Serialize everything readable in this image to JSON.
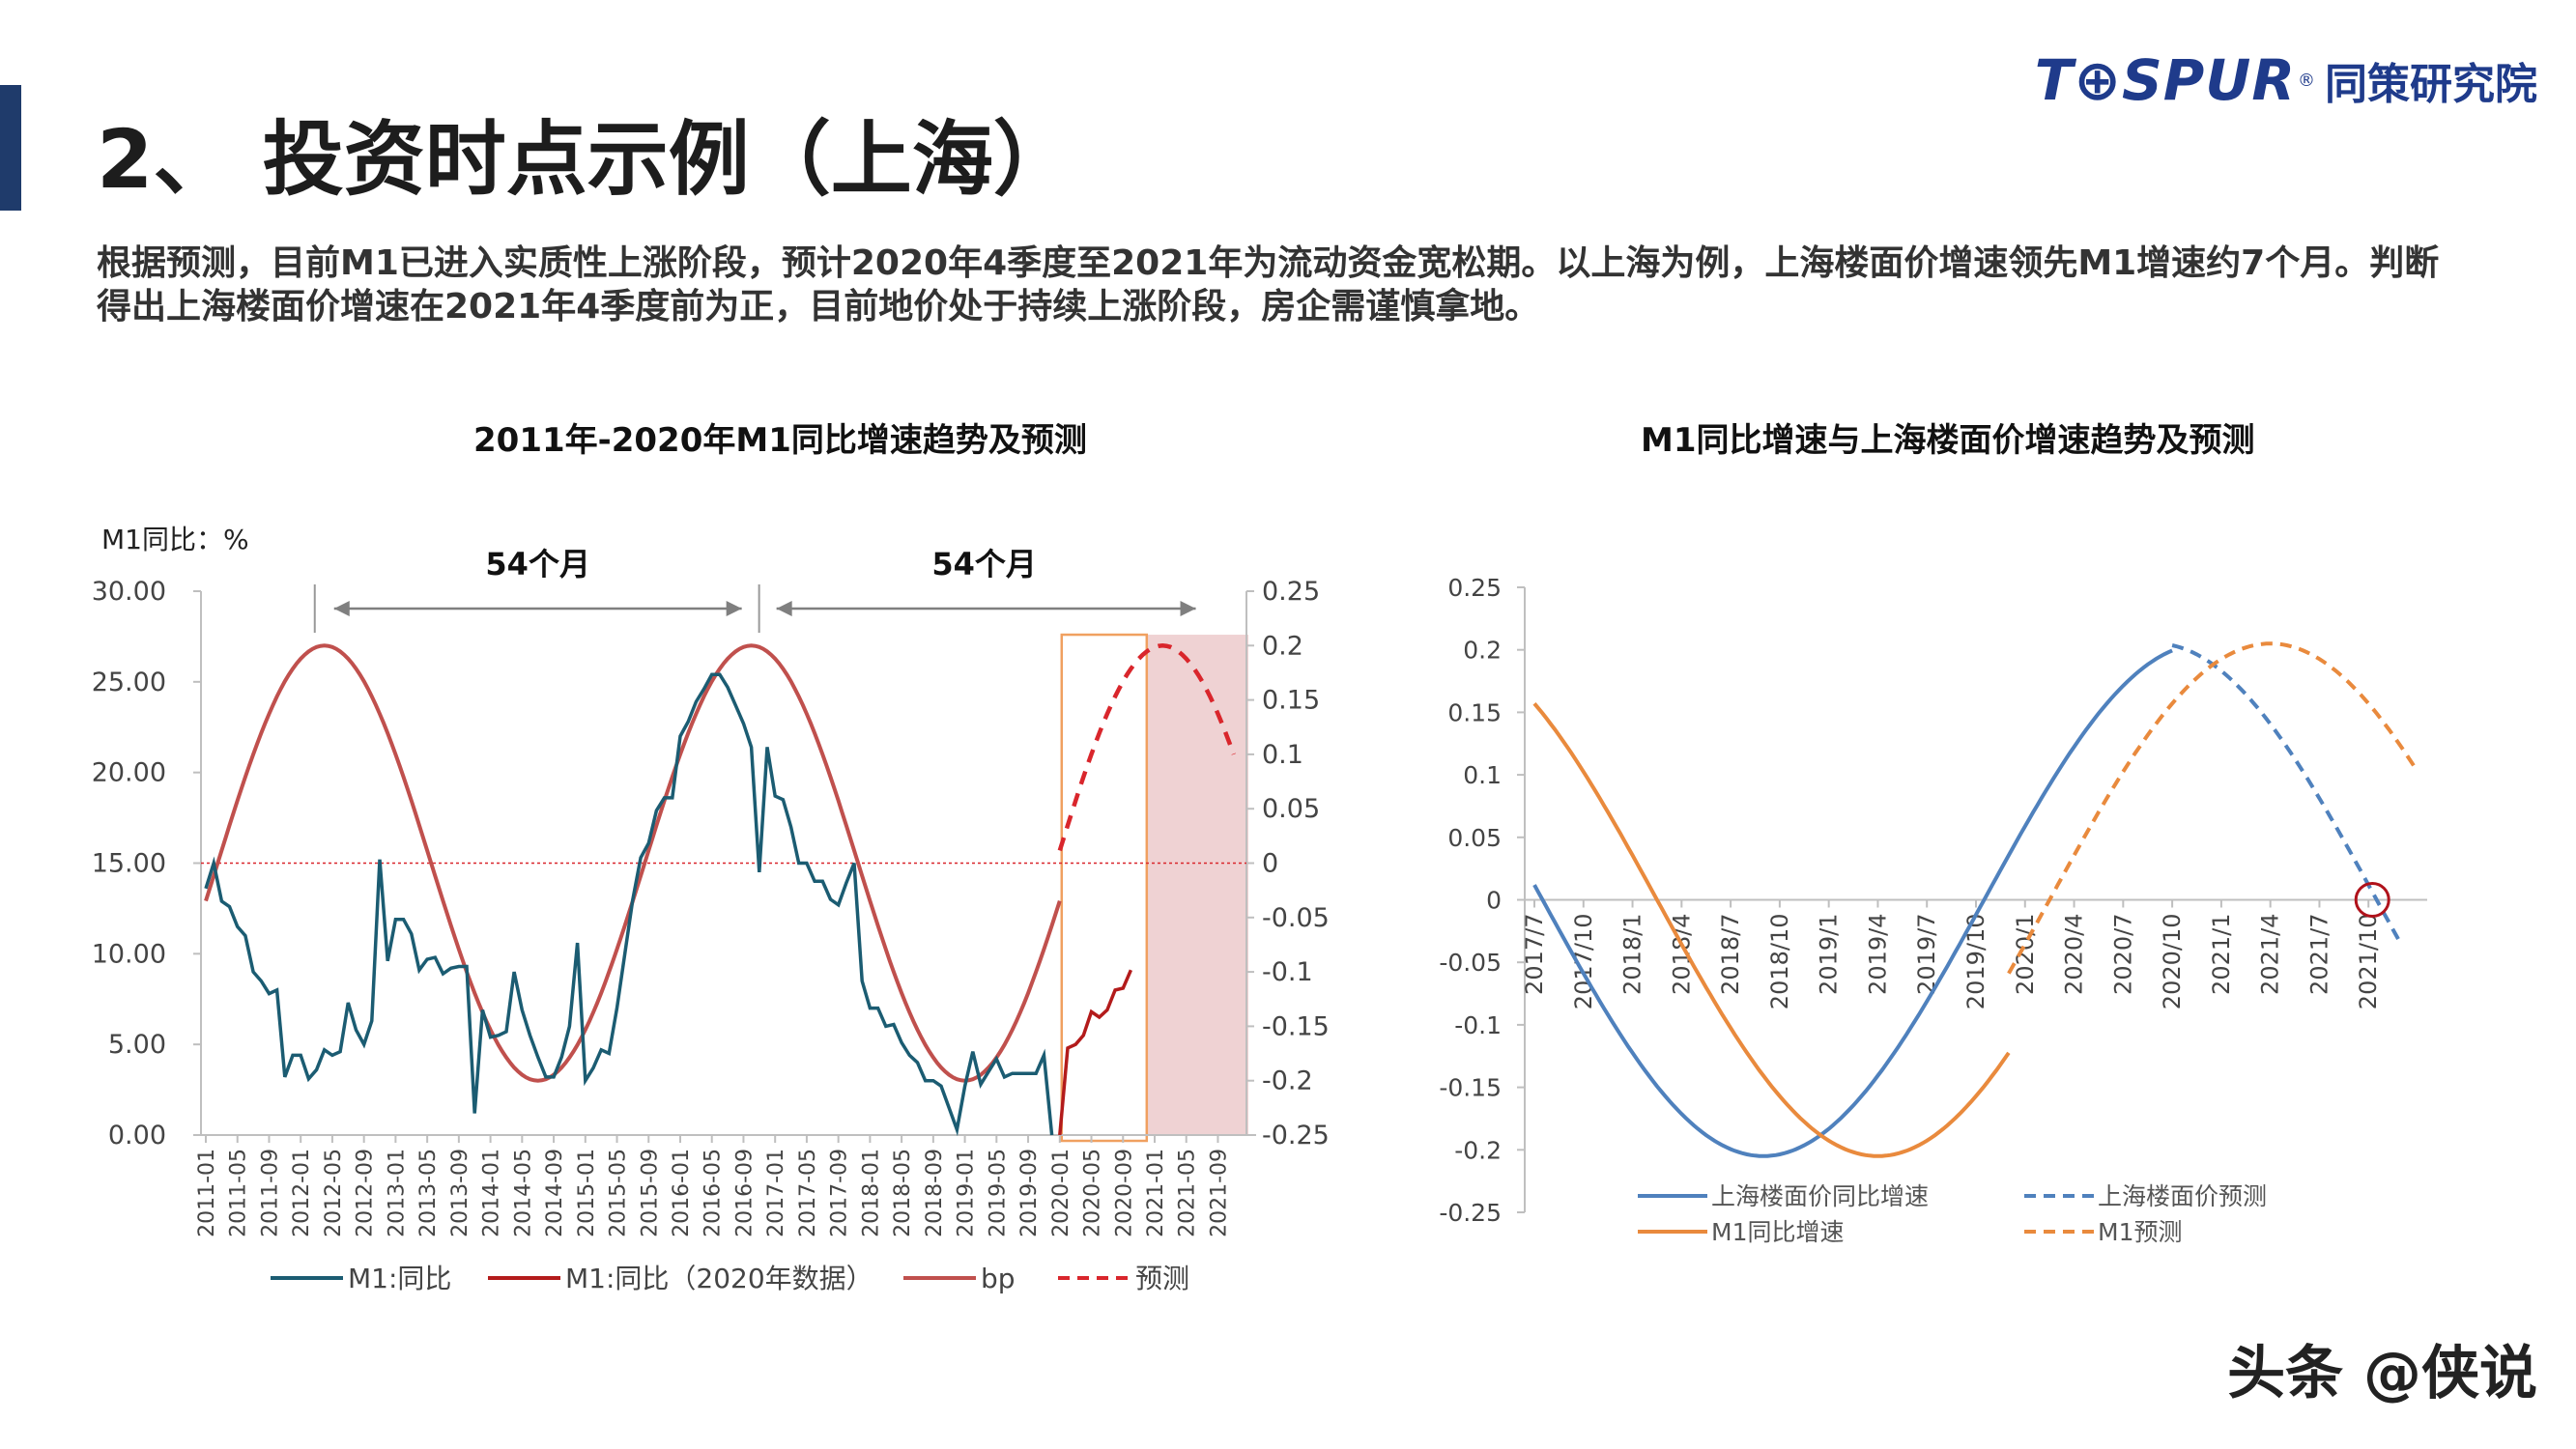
{
  "header": {
    "title": "2、 投资时点示例（上海）",
    "logo_brand": "T⊕SPUR",
    "logo_registered": "®",
    "logo_cn": "同策研究院"
  },
  "description": "根据预测，目前M1已进入实质性上涨阶段，预计2020年4季度至2021年为流动资金宽松期。以上海为例，上海楼面价增速领先M1增速约7个月。判断得出上海楼面价增速在2021年4季度前为正，目前地价处于持续上涨阶段，房企需谨慎拿地。",
  "footer": {
    "watermark_handle": "头条 @侠说"
  },
  "colors": {
    "accent": "#1f3b6b",
    "m1": "#1b5c72",
    "m1_2020": "#b31b1b",
    "bp": "#c0504d",
    "forecast": "#d9262c",
    "shade": "#efd2d3",
    "box": "#f0a060",
    "blue": "#4f81bd",
    "orange": "#e98a3d"
  },
  "chart_data": [
    {
      "type": "line",
      "title": "2011年-2020年M1同比增速趋势及预测",
      "ylabel": "M1同比：%",
      "ylim": [
        0,
        30
      ],
      "y2lim": [
        -0.25,
        0.25
      ],
      "y_ticks": [
        "0.00",
        "5.00",
        "10.00",
        "15.00",
        "20.00",
        "25.00",
        "30.00"
      ],
      "y2_ticks": [
        "-0.25",
        "-0.2",
        "-0.15",
        "-0.1",
        "-0.05",
        "0",
        "0.05",
        "0.1",
        "0.15",
        "0.2",
        "0.25"
      ],
      "x_ticks": [
        "2011-01",
        "2011-05",
        "2011-09",
        "2012-01",
        "2012-05",
        "2012-09",
        "2013-01",
        "2013-05",
        "2013-09",
        "2014-01",
        "2014-05",
        "2014-09",
        "2015-01",
        "2015-05",
        "2015-09",
        "2016-01",
        "2016-05",
        "2016-09",
        "2017-01",
        "2017-05",
        "2017-09",
        "2018-01",
        "2018-05",
        "2018-09",
        "2019-01",
        "2019-05",
        "2019-09",
        "2020-01",
        "2020-05",
        "2020-09",
        "2021-01",
        "2021-05",
        "2021-09"
      ],
      "annotations": [
        "54个月",
        "54个月"
      ],
      "legend": [
        "M1:同比",
        "M1:同比（2020年数据）",
        "bp",
        "预测"
      ],
      "legend_position": "bottom",
      "series": [
        {
          "name": "M1:同比",
          "axis": "left",
          "x_start": "2011-01",
          "values": [
            13.6,
            15.0,
            12.9,
            12.6,
            11.5,
            11.0,
            9.0,
            8.5,
            7.8,
            8.0,
            3.2,
            4.4,
            4.4,
            3.1,
            3.6,
            4.7,
            4.4,
            4.6,
            7.3,
            5.8,
            5.0,
            6.3,
            15.2,
            9.6,
            11.9,
            11.9,
            11.1,
            9.1,
            9.7,
            9.8,
            8.9,
            9.2,
            9.3,
            9.3,
            1.2,
            6.9,
            5.4,
            5.5,
            5.7,
            9.0,
            6.9,
            5.5,
            4.3,
            3.2,
            3.2,
            4.3,
            6.0,
            10.6,
            3.0,
            3.7,
            4.7,
            4.5,
            7.0,
            10.0,
            13.0,
            15.3,
            16.1,
            17.9,
            18.6,
            18.6,
            22.0,
            22.8,
            23.9,
            24.6,
            25.4,
            25.4,
            24.7,
            23.7,
            22.7,
            21.4,
            14.5,
            21.4,
            18.7,
            18.5,
            17.0,
            15.0,
            15.0,
            14.0,
            14.0,
            13.0,
            12.7,
            13.9,
            15.0,
            8.5,
            7.0,
            7.0,
            6.0,
            6.1,
            5.1,
            4.4,
            4.0,
            3.0,
            3.0,
            2.7,
            1.5,
            0.3,
            2.7,
            4.6,
            2.8,
            3.5,
            4.2,
            3.2,
            3.4,
            3.4,
            3.4,
            3.4,
            4.4,
            0.0
          ]
        },
        {
          "name": "M1:同比（2020年数据）",
          "axis": "left",
          "x_start": "2020-01",
          "values": [
            0.0,
            4.8,
            5.0,
            5.5,
            6.8,
            6.5,
            6.9,
            8.0,
            8.1,
            9.1
          ]
        },
        {
          "name": "bp",
          "axis": "right",
          "x_start": "2011-01",
          "period_months": 54,
          "amplitude": 0.2,
          "peak": "2012-04",
          "x_end": "2020-01"
        },
        {
          "name": "预测",
          "axis": "right",
          "x_start": "2020-01",
          "period_months": 54,
          "amplitude": 0.2,
          "peak": "2021-02",
          "x_end": "2021-11"
        }
      ]
    },
    {
      "type": "line",
      "title": "M1同比增速与上海楼面价增速趋势及预测",
      "ylim": [
        -0.25,
        0.25
      ],
      "y_ticks": [
        "0.25",
        "0.2",
        "0.15",
        "0.1",
        "0.05",
        "0",
        "-0.05",
        "-0.1",
        "-0.15",
        "-0.2",
        "-0.25"
      ],
      "x_ticks": [
        "2017/7",
        "2017/10",
        "2018/1",
        "2018/4",
        "2018/7",
        "2018/10",
        "2019/1",
        "2019/4",
        "2019/7",
        "2019/10",
        "2020/1",
        "2020/4",
        "2020/7",
        "2020/10",
        "2021/1",
        "2021/4",
        "2021/7",
        "2021/10"
      ],
      "legend": [
        "上海楼面价同比增速",
        "上海楼面价预测",
        "M1同比增速",
        "M1预测"
      ],
      "legend_position": "bottom",
      "series": [
        {
          "name": "上海楼面价同比增速",
          "style": "solid",
          "x_range": [
            "2017/7",
            "2020/10"
          ],
          "amplitude": 0.205,
          "trough": "2018/9",
          "period_months": 54
        },
        {
          "name": "上海楼面价预测",
          "style": "dashed",
          "x_range": [
            "2020/10",
            "2021/12"
          ],
          "amplitude": 0.205,
          "peak": "2020/9",
          "period_months": 54
        },
        {
          "name": "M1同比增速",
          "style": "solid",
          "x_range": [
            "2017/7",
            "2019/12"
          ],
          "amplitude": 0.205,
          "trough": "2019/4",
          "period_months": 54
        },
        {
          "name": "M1预测",
          "style": "dashed",
          "x_range": [
            "2019/12",
            "2022/1"
          ],
          "amplitude": 0.205,
          "peak": "2021/4",
          "period_months": 54
        }
      ]
    }
  ]
}
